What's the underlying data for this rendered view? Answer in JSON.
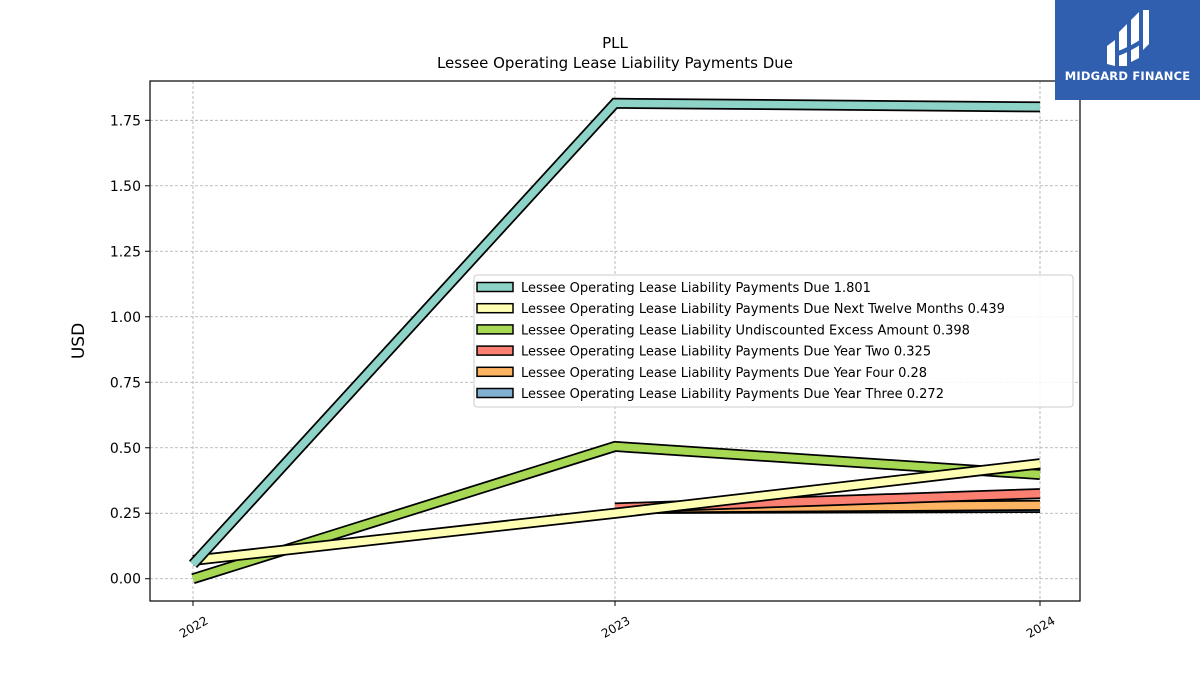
{
  "logo": {
    "text": "MIDGARD FINANCE",
    "icon": "midgard-logo-icon",
    "background": "#2f5fae"
  },
  "chart_data": {
    "type": "line",
    "title": "PLL",
    "subtitle": "Lessee Operating Lease Liability Payments Due",
    "xlabel": "",
    "ylabel": "USD",
    "x": [
      "2022",
      "2023",
      "2024"
    ],
    "ylim": [
      -0.085,
      1.9
    ],
    "yticks": [
      "0.00",
      "0.25",
      "0.50",
      "0.75",
      "1.00",
      "1.25",
      "1.50",
      "1.75"
    ],
    "grid": true,
    "legend_position": "center-right",
    "series": [
      {
        "name": "Lessee Operating Lease Liability Payments Due",
        "legend_label": "Lessee Operating Lease Liability Payments Due  1.801",
        "color": "#8dd3c7",
        "values": [
          0.055,
          1.815,
          1.801
        ]
      },
      {
        "name": "Lessee Operating Lease Liability Payments Due Next Twelve Months",
        "legend_label": "Lessee Operating Lease Liability Payments Due Next Twelve Months  0.439",
        "color": "#ffffb3",
        "values": [
          0.07,
          0.25,
          0.439
        ]
      },
      {
        "name": "Lessee Operating Lease Liability Undiscounted Excess Amount",
        "legend_label": "Lessee Operating Lease Liability Undiscounted Excess Amount  0.398",
        "color": "#a6d854",
        "values": [
          0.0,
          0.505,
          0.398
        ]
      },
      {
        "name": "Lessee Operating Lease Liability Payments Due Year Two",
        "legend_label": "Lessee Operating Lease Liability Payments Due Year Two  0.325",
        "color": "#fb8072",
        "values": [
          null,
          0.27,
          0.325
        ]
      },
      {
        "name": "Lessee Operating Lease Liability Payments Due Year Four",
        "legend_label": "Lessee Operating Lease Liability Payments Due Year Four  0.28",
        "color": "#fdb462",
        "values": [
          null,
          0.27,
          0.28
        ]
      },
      {
        "name": "Lessee Operating Lease Liability Payments Due Year Three",
        "legend_label": "Lessee Operating Lease Liability Payments Due Year Three  0.272",
        "color": "#80b1d3",
        "values": [
          null,
          0.268,
          0.272
        ]
      }
    ]
  }
}
